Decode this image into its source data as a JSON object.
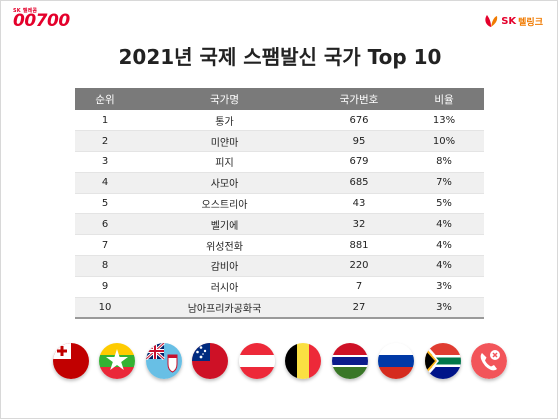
{
  "brand": {
    "small": "SK 텔레콤",
    "big": "00700"
  },
  "brand_right": {
    "sk": "SK",
    "sub": "텔링크"
  },
  "title": "2021년 국제 스팸발신 국가 Top 10",
  "columns": [
    "순위",
    "국가명",
    "국가번호",
    "비율"
  ],
  "rows": [
    {
      "rank": "1",
      "country": "통가",
      "code": "676",
      "ratio": "13%"
    },
    {
      "rank": "2",
      "country": "미얀마",
      "code": "95",
      "ratio": "10%"
    },
    {
      "rank": "3",
      "country": "피지",
      "code": "679",
      "ratio": "8%"
    },
    {
      "rank": "4",
      "country": "사모아",
      "code": "685",
      "ratio": "7%"
    },
    {
      "rank": "5",
      "country": "오스트리아",
      "code": "43",
      "ratio": "5%"
    },
    {
      "rank": "6",
      "country": "벨기에",
      "code": "32",
      "ratio": "4%"
    },
    {
      "rank": "7",
      "country": "위성전화",
      "code": "881",
      "ratio": "4%"
    },
    {
      "rank": "8",
      "country": "감비아",
      "code": "220",
      "ratio": "4%"
    },
    {
      "rank": "9",
      "country": "러시아",
      "code": "7",
      "ratio": "3%"
    },
    {
      "rank": "10",
      "country": "남아프리카공화국",
      "code": "27",
      "ratio": "3%"
    }
  ],
  "flags": [
    "tonga-flag-icon",
    "myanmar-flag-icon",
    "fiji-flag-icon",
    "samoa-flag-icon",
    "austria-flag-icon",
    "belgium-flag-icon",
    "gambia-flag-icon",
    "russia-flag-icon",
    "south-africa-flag-icon",
    "blocked-call-icon"
  ],
  "colors": {
    "brand_red": "#e4002b",
    "brand_orange": "#f07a00",
    "header_gray": "#7a7a7a"
  }
}
